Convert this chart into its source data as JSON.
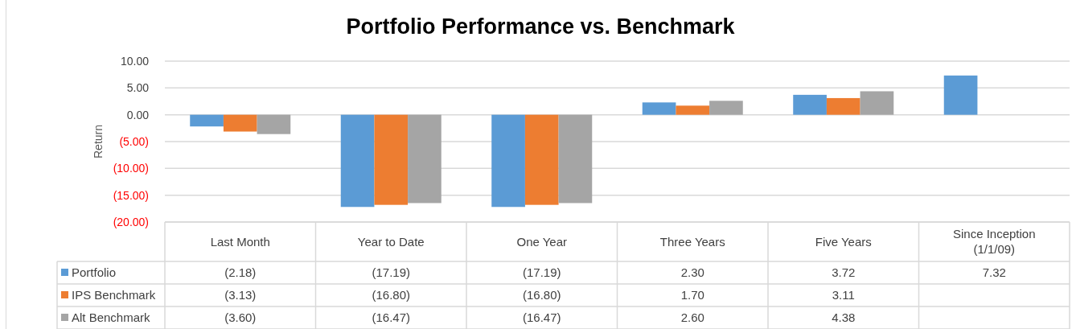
{
  "chart_data": {
    "type": "bar",
    "title": "Portfolio Performance vs. Benchmark",
    "ylabel": "Return",
    "categories": [
      "Last Month",
      "Year to Date",
      "One Year",
      "Three Years",
      "Five Years",
      "Since Inception (1/1/09)"
    ],
    "series": [
      {
        "name": "Portfolio",
        "color": "#5b9bd5",
        "values": [
          -2.18,
          -17.19,
          -17.19,
          2.3,
          3.72,
          7.32
        ],
        "value_labels": [
          "(2.18)",
          "(17.19)",
          "(17.19)",
          "2.30",
          "3.72",
          "7.32"
        ]
      },
      {
        "name": "IPS Benchmark",
        "color": "#ed7d31",
        "values": [
          -3.13,
          -16.8,
          -16.8,
          1.7,
          3.11,
          null
        ],
        "value_labels": [
          "(3.13)",
          "(16.80)",
          "(16.80)",
          "1.70",
          "3.11",
          null
        ]
      },
      {
        "name": "Alt Benchmark",
        "color": "#a5a5a5",
        "values": [
          -3.6,
          -16.47,
          -16.47,
          2.6,
          4.38,
          null
        ],
        "value_labels": [
          "(3.60)",
          "(16.47)",
          "(16.47)",
          "2.60",
          "4.38",
          null
        ]
      }
    ],
    "ylim": [
      -20,
      10
    ],
    "yticks": [
      {
        "value": 10,
        "label": "10.00"
      },
      {
        "value": 5,
        "label": "5.00"
      },
      {
        "value": 0,
        "label": "0.00"
      },
      {
        "value": -5,
        "label": "(5.00)"
      },
      {
        "value": -10,
        "label": "(10.00)"
      },
      {
        "value": -15,
        "label": "(15.00)"
      },
      {
        "value": -20,
        "label": "(20.00)"
      }
    ],
    "grid": "y",
    "legend": "bottom left"
  }
}
